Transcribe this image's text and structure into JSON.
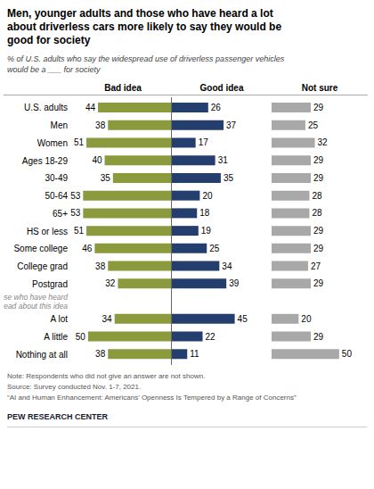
{
  "chart_data": {
    "type": "bar",
    "orientation": "horizontal",
    "title": "Men, younger adults and those who have heard a lot\nabout driverless cars more likely to say they would be\ngood for society",
    "subtitle": "% of U.S. adults who say the widespread use of driverless passenger vehicles\nwould be a ___ for society",
    "categories": [
      "U.S. adults",
      "Men",
      "Women",
      "Ages 18-29",
      "30-49",
      "50-64",
      "65+",
      "HS or less",
      "Some college",
      "College grad",
      "Postgrad",
      "A lot",
      "A little",
      "Nothing at all"
    ],
    "series": [
      {
        "name": "Bad idea",
        "color": "#8a9a3c",
        "values": [
          44,
          38,
          51,
          40,
          35,
          53,
          53,
          51,
          46,
          38,
          32,
          34,
          50,
          38
        ]
      },
      {
        "name": "Good idea",
        "color": "#243f6e",
        "values": [
          26,
          37,
          17,
          31,
          35,
          20,
          18,
          19,
          25,
          34,
          39,
          45,
          22,
          11
        ]
      },
      {
        "name": "Not sure",
        "color": "#a8a8a8",
        "values": [
          29,
          25,
          32,
          29,
          29,
          28,
          28,
          29,
          29,
          27,
          29,
          20,
          29,
          50
        ]
      }
    ],
    "xlim": [
      0,
      58
    ],
    "tick_labels": "y",
    "data_labels": true,
    "annotations": [
      {
        "text": "Among those who have heard\nor read about this idea",
        "category": "A lot"
      }
    ],
    "notes": [
      "Note: Respondents who did not give an answer are not shown.",
      "Source: Survey conducted Nov. 1-7, 2021.",
      "“AI and Human Enhancement: Americans’ Openness Is Tempered by a Range of Concerns”"
    ],
    "source": "PEW RESEARCH CENTER"
  }
}
